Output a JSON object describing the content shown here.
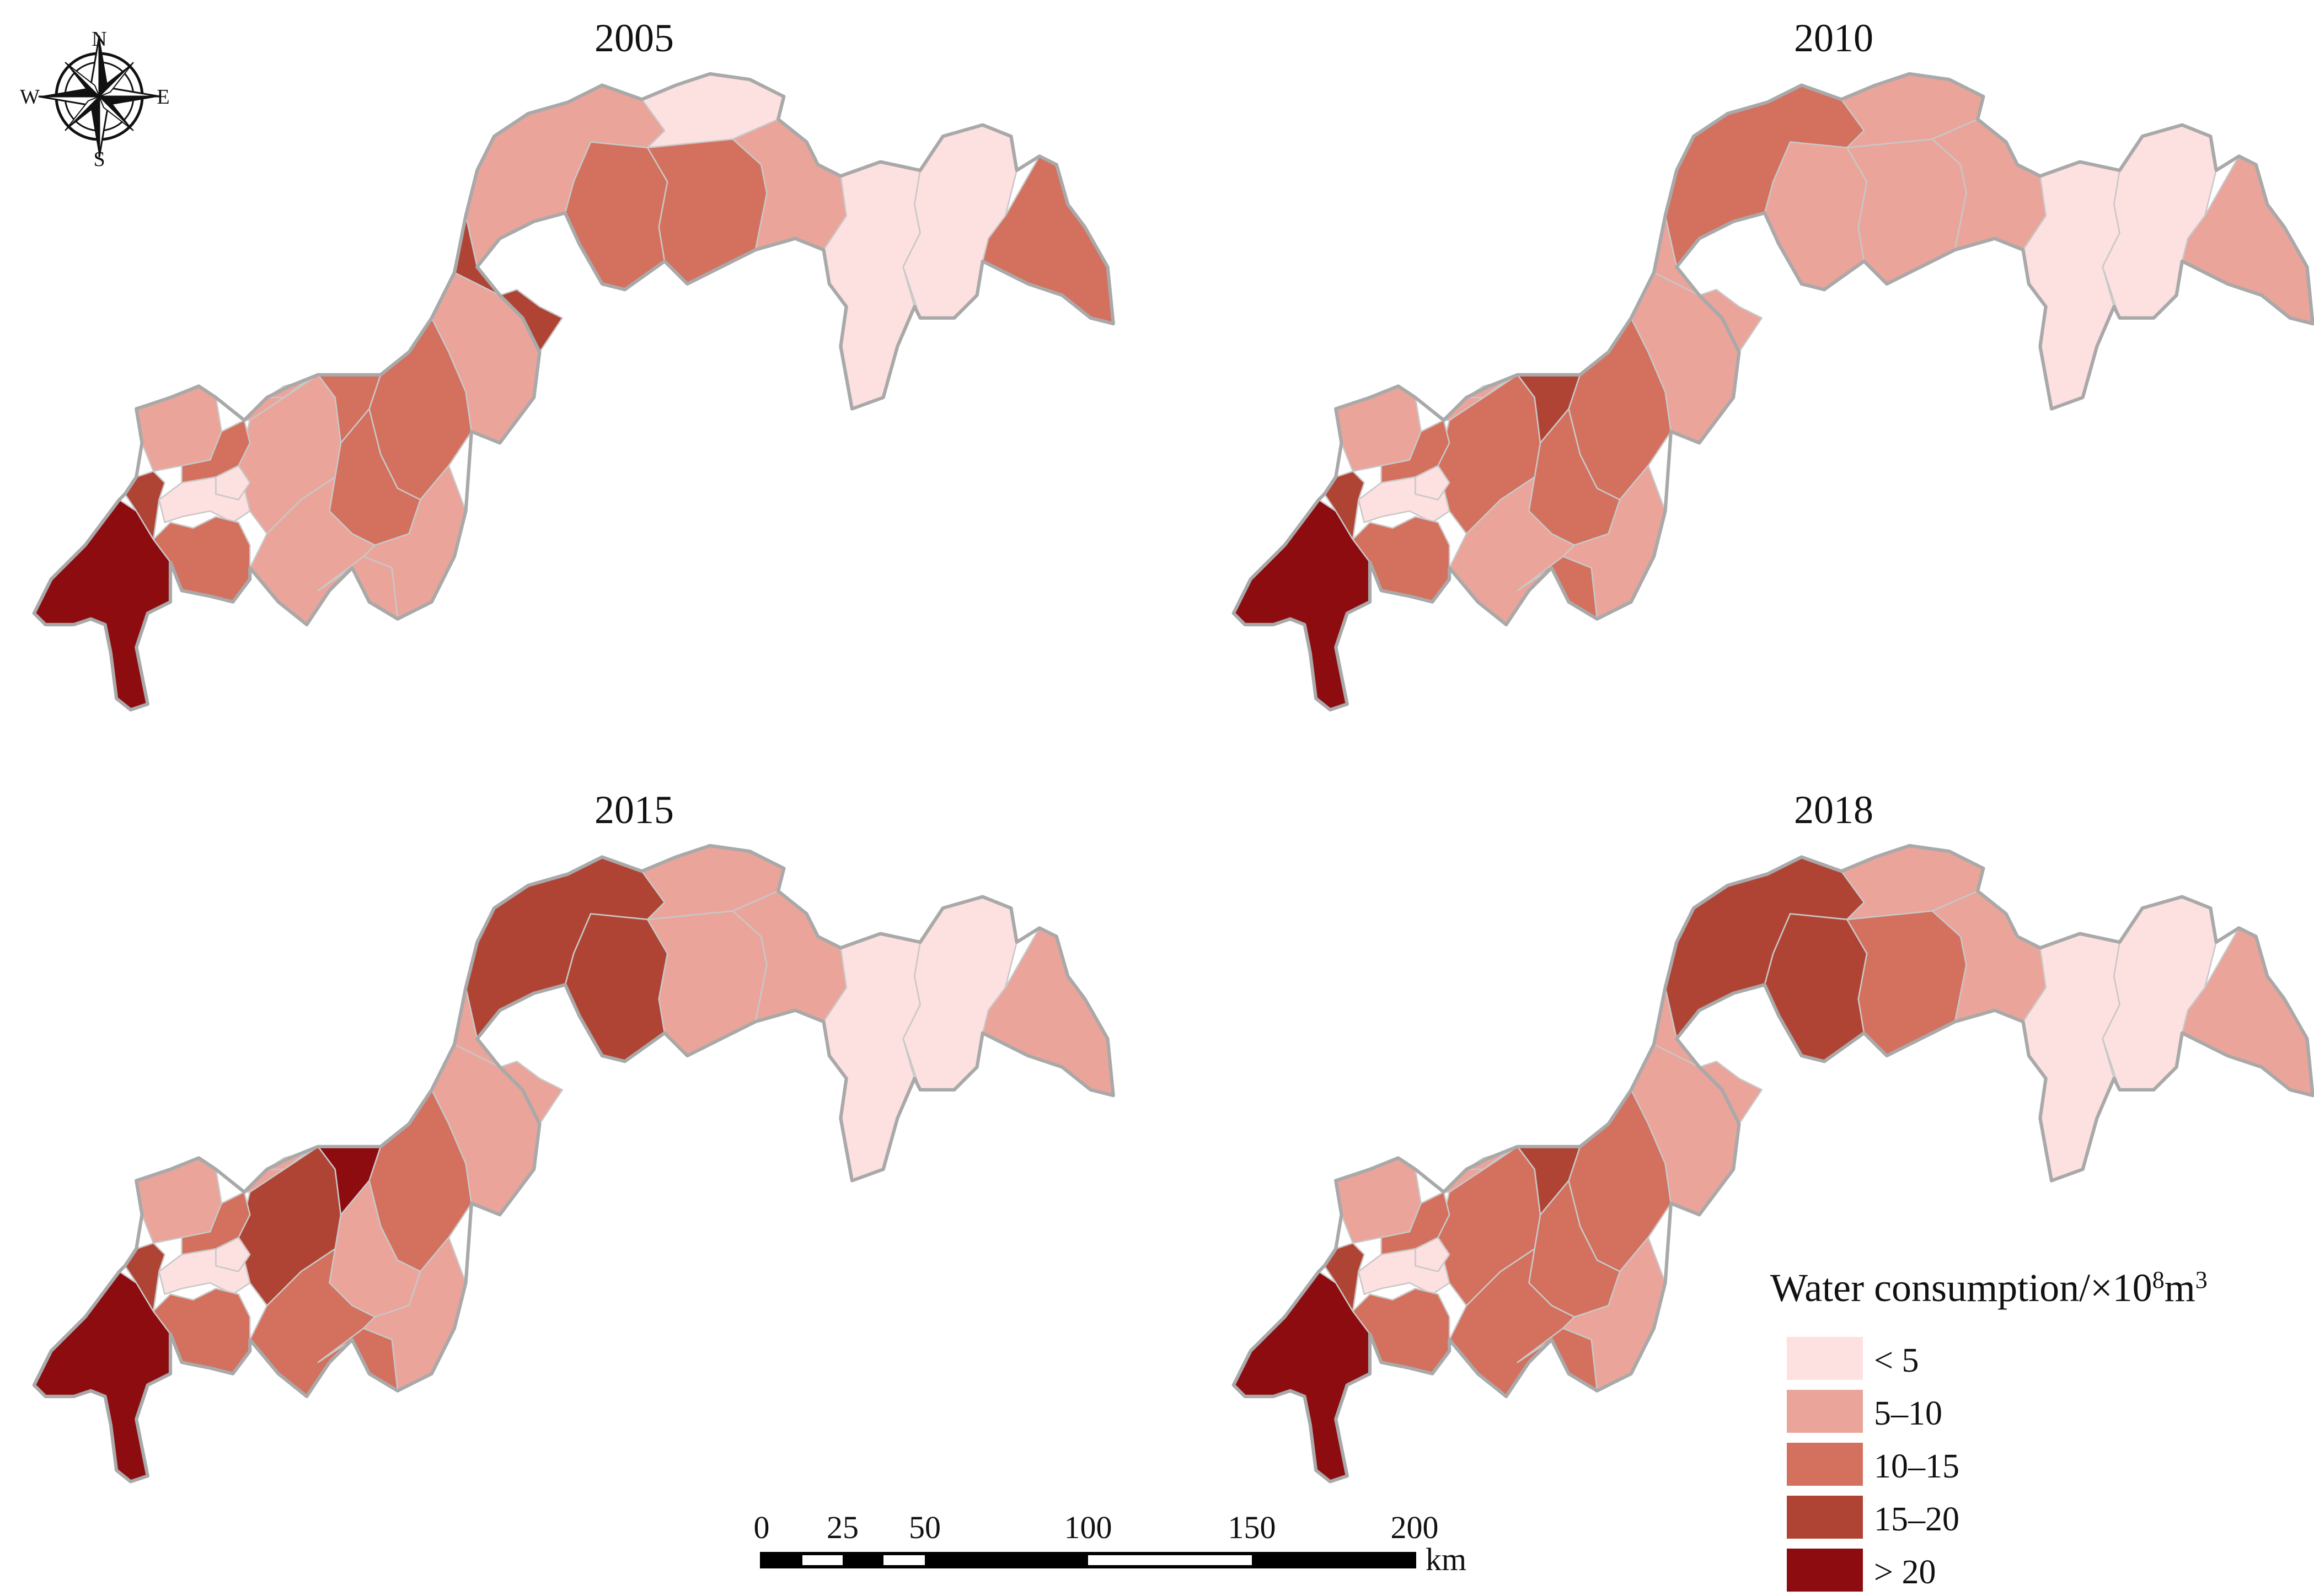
{
  "figure": {
    "panels": [
      {
        "year": "2005",
        "classes": [
          1,
          2,
          2,
          1,
          0,
          0,
          0,
          2,
          3,
          2,
          2,
          1,
          1,
          1,
          2,
          1,
          1,
          1,
          0,
          2,
          4,
          3,
          2,
          1,
          1,
          0
        ]
      },
      {
        "year": "2010",
        "classes": [
          2,
          1,
          1,
          1,
          1,
          0,
          0,
          1,
          1,
          2,
          2,
          1,
          1,
          2,
          3,
          1,
          2,
          1,
          0,
          2,
          4,
          3,
          2,
          1,
          1,
          0
        ]
      },
      {
        "year": "2015",
        "classes": [
          3,
          3,
          1,
          1,
          1,
          0,
          0,
          1,
          1,
          2,
          1,
          1,
          2,
          3,
          4,
          1,
          2,
          1,
          0,
          2,
          4,
          3,
          2,
          1,
          1,
          0
        ]
      },
      {
        "year": "2018",
        "classes": [
          3,
          3,
          2,
          1,
          1,
          0,
          0,
          1,
          1,
          2,
          2,
          1,
          2,
          2,
          3,
          1,
          2,
          1,
          0,
          2,
          4,
          3,
          2,
          1,
          1,
          0
        ]
      }
    ]
  },
  "legend": {
    "title": "Water consumption/×10",
    "title_sup": "8",
    "title_unit": "m",
    "title_unit_sup": "3",
    "classes": [
      {
        "label": "< 5",
        "color": "#fde0e0"
      },
      {
        "label": "5–10",
        "color": "#eaa49a"
      },
      {
        "label": "10–15",
        "color": "#d4705e"
      },
      {
        "label": "15–20",
        "color": "#b04434"
      },
      {
        "label": "> 20",
        "color": "#8c0c10"
      }
    ]
  },
  "scale_bar": {
    "ticks": [
      "0",
      "25",
      "50",
      "100",
      "150",
      "200"
    ],
    "unit": "km"
  },
  "compass": {
    "n": "N",
    "s": "S",
    "e": "E",
    "w": "W"
  },
  "colors": {
    "boundary": "#c8c8c8",
    "outline": "#a9a9a9"
  }
}
